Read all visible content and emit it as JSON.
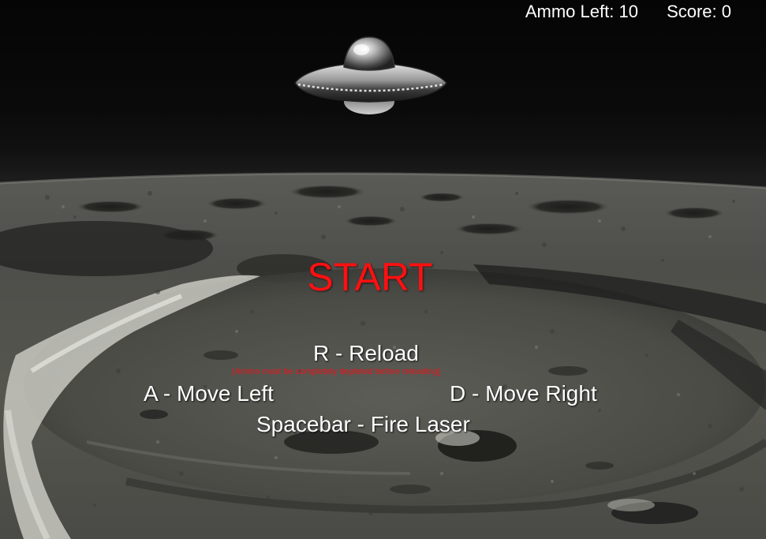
{
  "hud": {
    "ammo_label": "Ammo Left: 10",
    "score_label": "Score: 0"
  },
  "menu": {
    "start_label": "START"
  },
  "controls": {
    "reload": "R - Reload",
    "reload_note": "(Ammo must be completely depleted before reloading)",
    "move_left": "A - Move Left",
    "move_right": "D - Move Right",
    "fire": "Spacebar - Fire Laser"
  },
  "sprites": {
    "player_ship": "ufo-saucer-icon"
  },
  "colors": {
    "start": "#ff1010",
    "note": "#e8141a",
    "hud_text": "#ffffff"
  }
}
